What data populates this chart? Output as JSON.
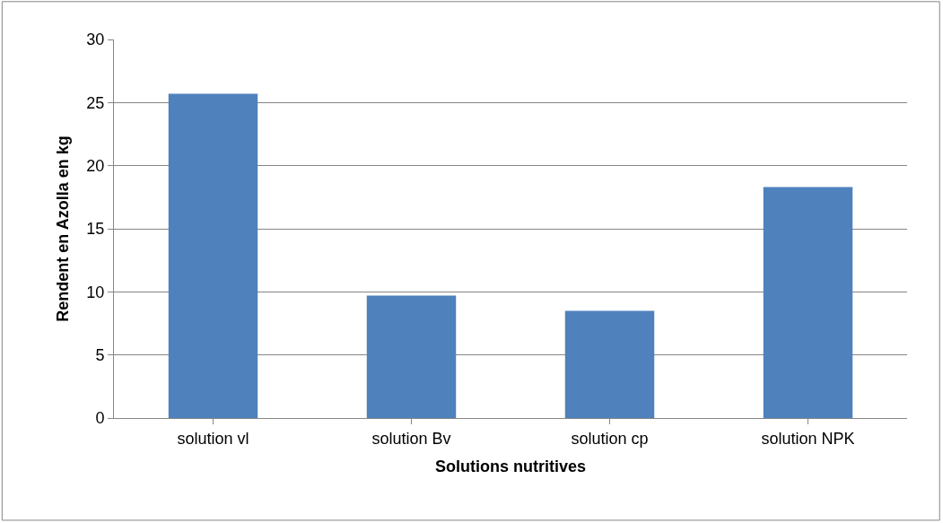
{
  "chart_data": {
    "type": "bar",
    "xlabel": "Solutions nutritives",
    "ylabel": "Rendent en Azolla en kg",
    "categories": [
      "solution vl",
      "solution Bv",
      "solution cp",
      "solution NPK"
    ],
    "values": [
      25.7,
      9.7,
      8.5,
      18.3
    ],
    "color": "#4f81bd",
    "ylim": [
      0,
      30
    ],
    "yticks": [
      0,
      5,
      10,
      15,
      20,
      25,
      30
    ],
    "grid": "y"
  }
}
